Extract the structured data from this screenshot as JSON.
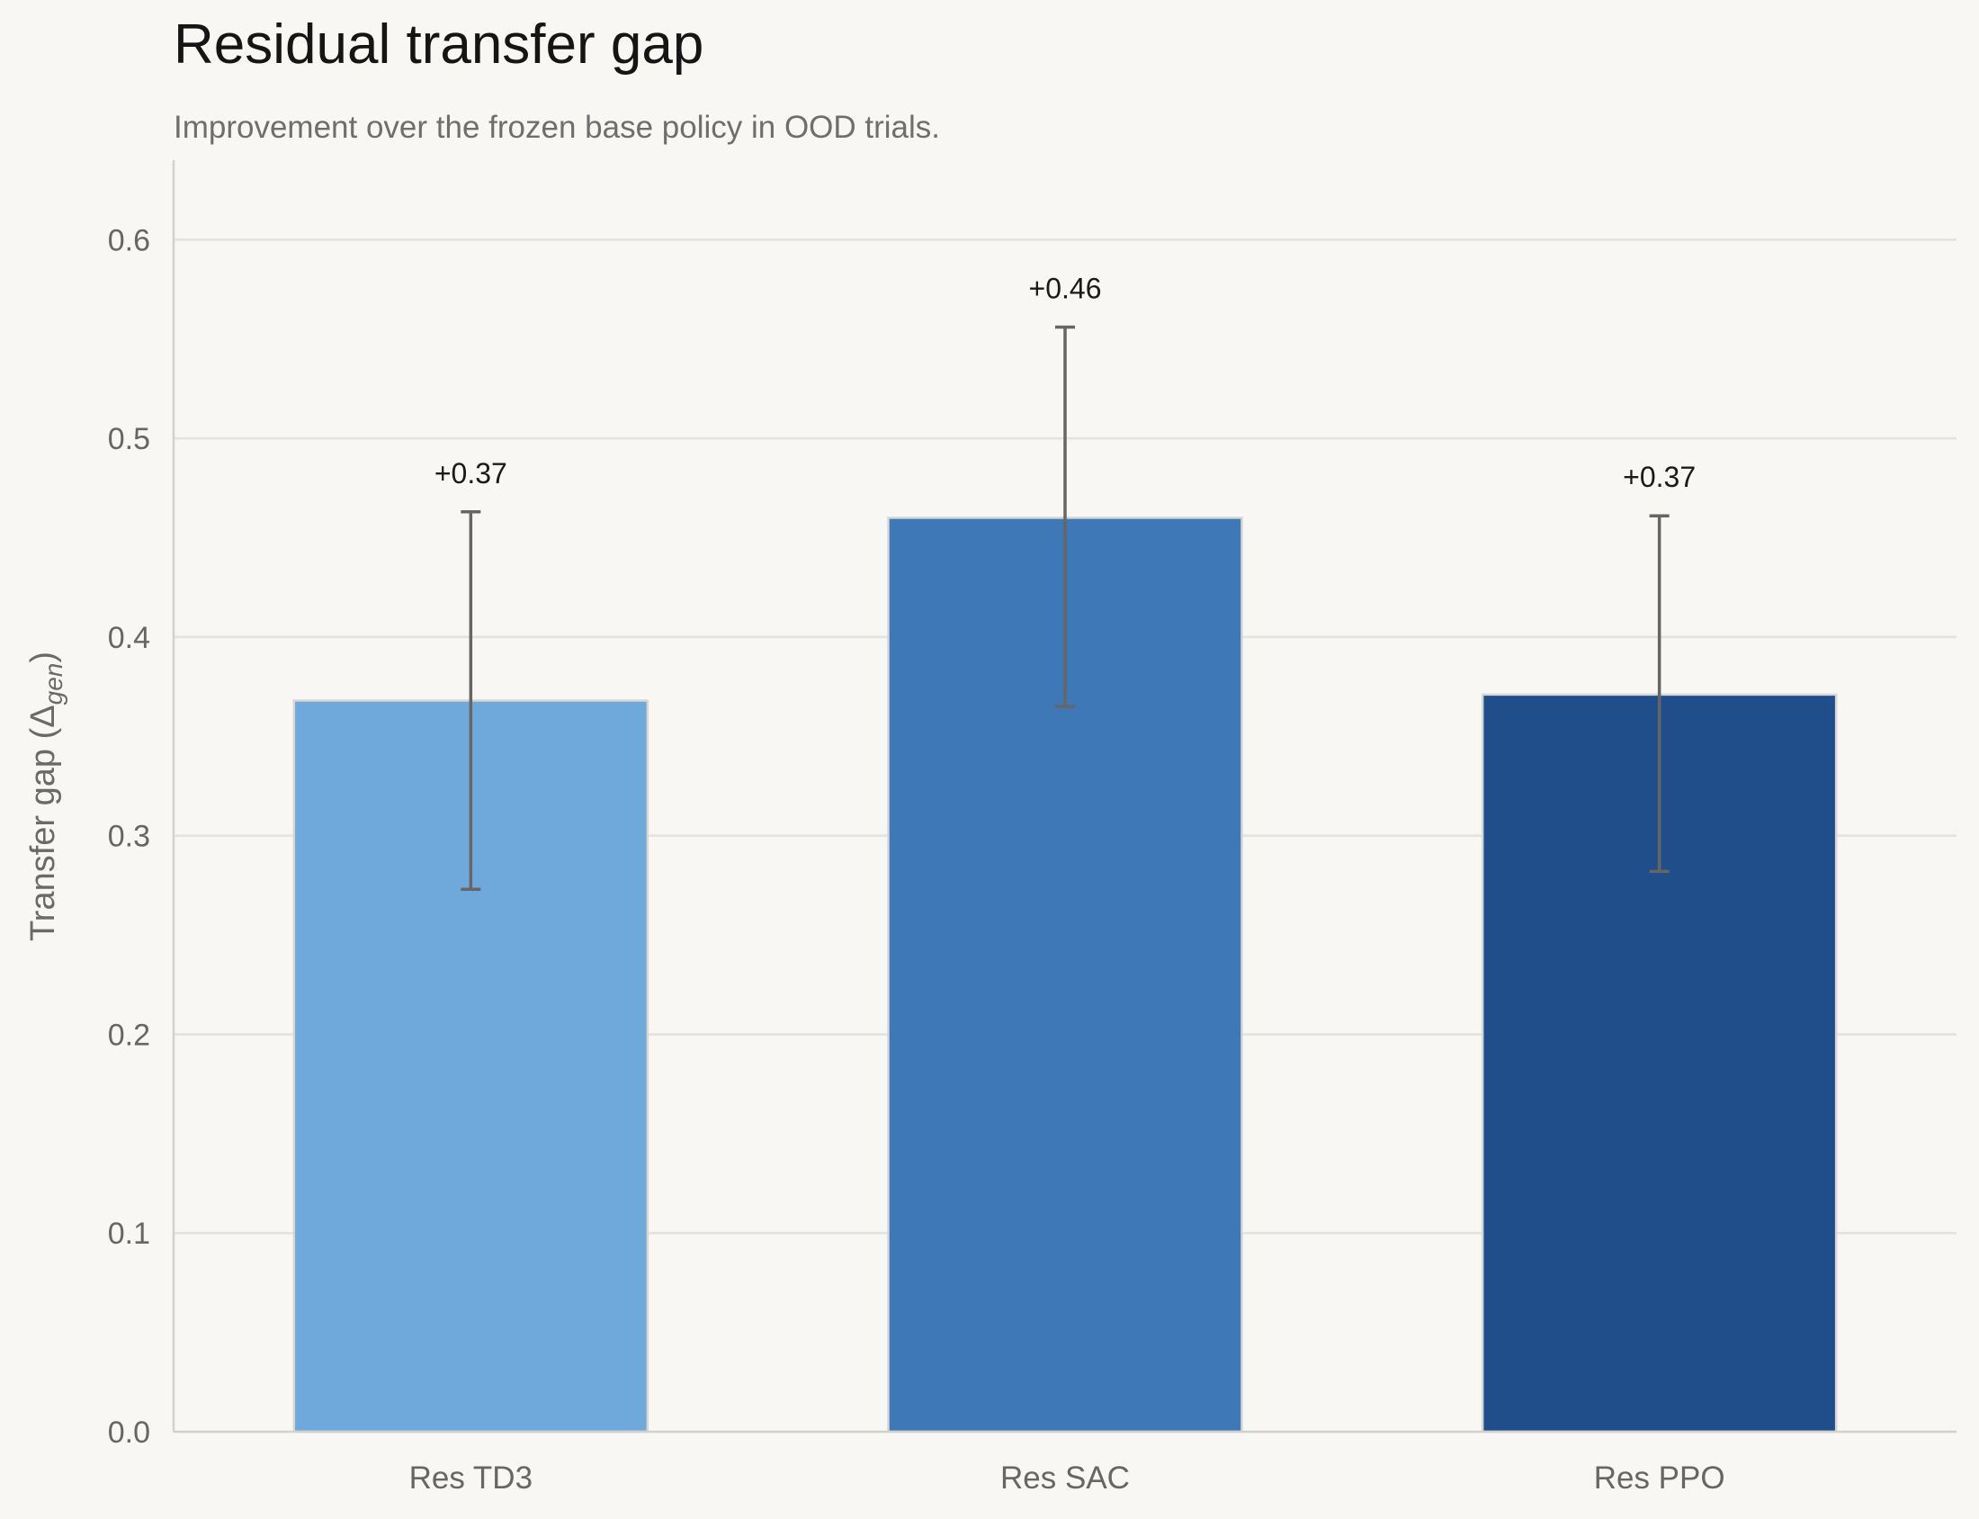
{
  "chart_data": {
    "type": "bar",
    "title": "Residual transfer gap",
    "subtitle": "Improvement over the frozen base policy in OOD trials.",
    "ylabel": "Transfer gap (Δgen)",
    "ylabel_main": "Transfer gap (Δ",
    "ylabel_sub": "gen",
    "ylabel_close": ")",
    "xlabel": "",
    "ylim": [
      0,
      0.64
    ],
    "yticks": [
      0.0,
      0.1,
      0.2,
      0.3,
      0.4,
      0.5,
      0.6
    ],
    "ytick_labels": [
      "0.0",
      "0.1",
      "0.2",
      "0.3",
      "0.4",
      "0.5",
      "0.6"
    ],
    "grid": true,
    "categories": [
      "Res TD3",
      "Res SAC",
      "Res PPO"
    ],
    "values": [
      0.368,
      0.46,
      0.371
    ],
    "error_low": [
      0.273,
      0.365,
      0.282
    ],
    "error_high": [
      0.463,
      0.556,
      0.461
    ],
    "data_labels": [
      "+0.37",
      "+0.46",
      "+0.37"
    ],
    "colors": [
      "#6fa8db",
      "#3e78b7",
      "#1f4e8b"
    ]
  }
}
